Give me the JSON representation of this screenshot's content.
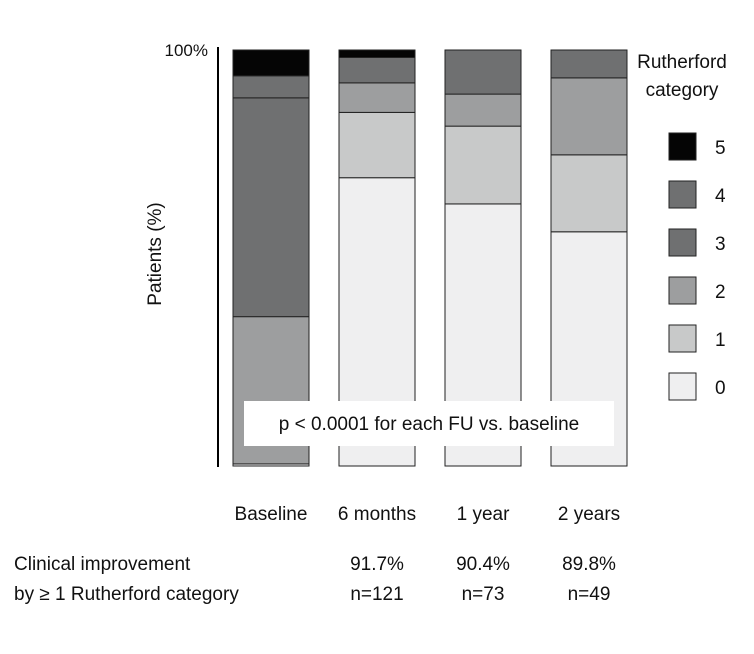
{
  "chart_data": {
    "type": "bar",
    "stacked": true,
    "ylabel": "Patients (%)",
    "ytick_top": "100%",
    "ylim": [
      0,
      100
    ],
    "categories": [
      "Baseline",
      "6 months",
      "1 year",
      "2 years"
    ],
    "legend": {
      "title_line1": "Rutherford",
      "title_line2": "category",
      "placement": "right"
    },
    "series": [
      {
        "name": "0",
        "color": "#efeff0",
        "values": [
          0.5,
          69.3,
          63.0,
          56.3
        ]
      },
      {
        "name": "1",
        "color": "#c8c9c9",
        "values": [
          0,
          15.7,
          18.7,
          18.5
        ]
      },
      {
        "name": "2",
        "color": "#9d9e9f",
        "values": [
          35.4,
          7.1,
          7.7,
          18.5
        ]
      },
      {
        "name": "3",
        "color": "#6f7071",
        "values": [
          52.6,
          0,
          0,
          0
        ]
      },
      {
        "name": "4",
        "color": "#6f7071",
        "values": [
          5.3,
          6.1,
          10.6,
          6.7
        ]
      },
      {
        "name": "5",
        "color": "#050505",
        "values": [
          6.2,
          1.8,
          0,
          0
        ]
      }
    ],
    "annotation": "p < 0.0001 for each FU vs. baseline",
    "grid": false
  },
  "footer": {
    "label_line1": "Clinical improvement",
    "label_line2": "by ≥ 1 Rutherford category",
    "percentages": [
      "91.7%",
      "90.4%",
      "89.8%"
    ],
    "counts": [
      "n=121",
      "n=73",
      "n=49"
    ]
  }
}
